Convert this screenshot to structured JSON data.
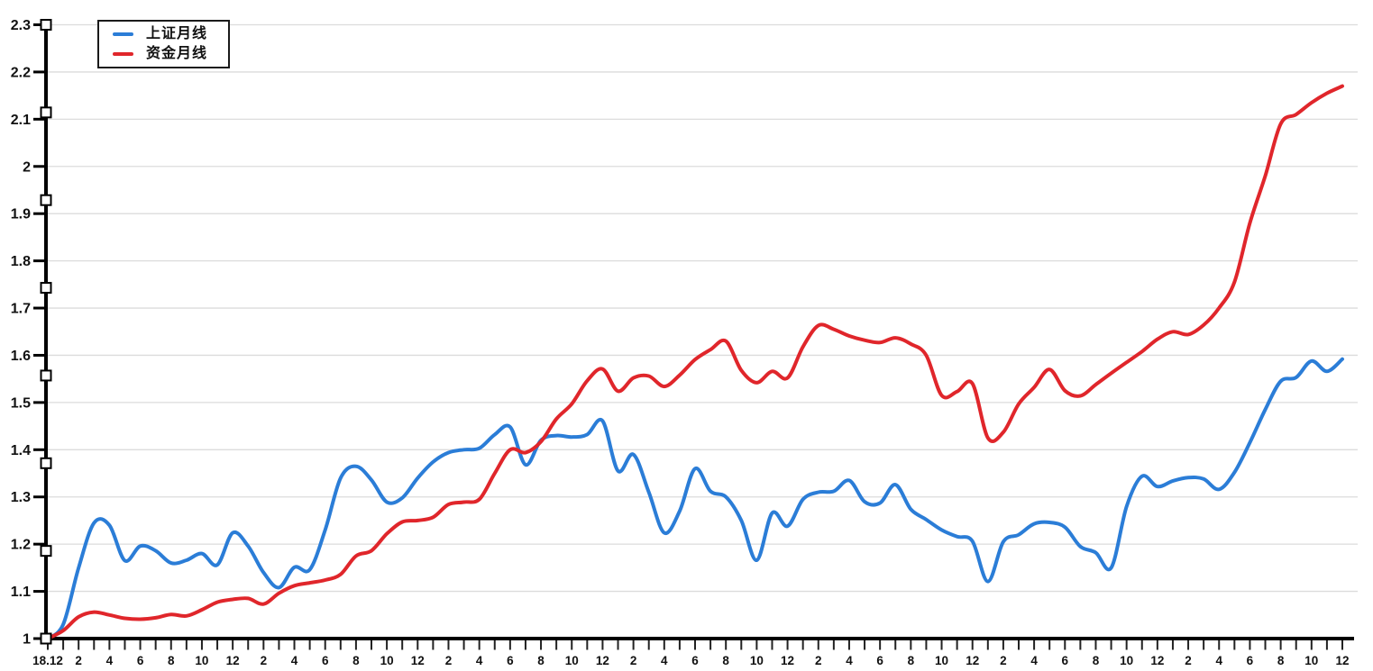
{
  "chart_data": {
    "type": "line",
    "title": "",
    "grid": "horizontal",
    "legend_position": "top-left",
    "x_axis": {
      "months_total": 85,
      "label_every": 2,
      "tick_labels": [
        "18.12",
        "2",
        "4",
        "6",
        "8",
        "10",
        "12",
        "2",
        "4",
        "6",
        "8",
        "10",
        "12",
        "2",
        "4",
        "6",
        "8",
        "10",
        "12",
        "2",
        "4",
        "6",
        "8",
        "10",
        "12",
        "2",
        "4",
        "6",
        "8",
        "10",
        "12",
        "2",
        "4",
        "6",
        "8",
        "10",
        "12",
        "2",
        "4",
        "6",
        "8",
        "10",
        "12"
      ]
    },
    "y_axis": {
      "min": 1,
      "max": 2.3,
      "step": 0.1,
      "tick_labels": [
        "1",
        "1.1",
        "1.2",
        "1.3",
        "1.4",
        "1.5",
        "1.6",
        "1.7",
        "1.8",
        "1.9",
        "2",
        "2.1",
        "2.2",
        "2.3"
      ]
    },
    "series": [
      {
        "name": "上证月线",
        "color": "#2b7dd7",
        "values": [
          1.0,
          1.03,
          1.15,
          1.245,
          1.24,
          1.165,
          1.196,
          1.186,
          1.16,
          1.166,
          1.18,
          1.156,
          1.224,
          1.196,
          1.14,
          1.108,
          1.151,
          1.146,
          1.23,
          1.34,
          1.365,
          1.336,
          1.289,
          1.298,
          1.34,
          1.374,
          1.394,
          1.4,
          1.403,
          1.432,
          1.448,
          1.368,
          1.42,
          1.43,
          1.427,
          1.432,
          1.461,
          1.355,
          1.39,
          1.31,
          1.224,
          1.27,
          1.36,
          1.312,
          1.3,
          1.25,
          1.166,
          1.266,
          1.238,
          1.295,
          1.31,
          1.312,
          1.335,
          1.29,
          1.287,
          1.326,
          1.274,
          1.252,
          1.23,
          1.216,
          1.206,
          1.121,
          1.205,
          1.22,
          1.243,
          1.246,
          1.236,
          1.195,
          1.182,
          1.15,
          1.28,
          1.344,
          1.322,
          1.334,
          1.341,
          1.338,
          1.316,
          1.352,
          1.415,
          1.485,
          1.545,
          1.553,
          1.588,
          1.566,
          1.592
        ]
      },
      {
        "name": "资金月线",
        "color": "#e0262b",
        "values": [
          1.0,
          1.017,
          1.046,
          1.056,
          1.05,
          1.043,
          1.041,
          1.044,
          1.051,
          1.048,
          1.061,
          1.077,
          1.083,
          1.085,
          1.073,
          1.096,
          1.112,
          1.118,
          1.124,
          1.136,
          1.175,
          1.186,
          1.222,
          1.247,
          1.25,
          1.257,
          1.284,
          1.289,
          1.295,
          1.35,
          1.4,
          1.394,
          1.417,
          1.465,
          1.497,
          1.546,
          1.571,
          1.524,
          1.552,
          1.556,
          1.534,
          1.558,
          1.591,
          1.612,
          1.63,
          1.568,
          1.542,
          1.566,
          1.552,
          1.618,
          1.663,
          1.655,
          1.641,
          1.632,
          1.627,
          1.637,
          1.624,
          1.6,
          1.515,
          1.523,
          1.54,
          1.425,
          1.437,
          1.497,
          1.532,
          1.57,
          1.525,
          1.514,
          1.538,
          1.562,
          1.585,
          1.608,
          1.634,
          1.65,
          1.644,
          1.664,
          1.7,
          1.755,
          1.88,
          1.98,
          2.09,
          2.11,
          2.135,
          2.155,
          2.17
        ]
      }
    ]
  },
  "legend": {
    "items": [
      {
        "label": "上证月线",
        "color": "#2b7dd7"
      },
      {
        "label": "资金月线",
        "color": "#e0262b"
      }
    ]
  },
  "axis_handles": {
    "count": 8,
    "values": [
      1.0,
      1.1857,
      1.3714,
      1.5571,
      1.7429,
      1.9286,
      2.1143,
      2.3
    ]
  },
  "colors": {
    "background": "#ffffff",
    "axis": "#000000",
    "grid": "#dcdcdc",
    "tick": "#222222",
    "label": "#111111",
    "handle_fill": "#ffffff",
    "handle_border": "#000000"
  }
}
